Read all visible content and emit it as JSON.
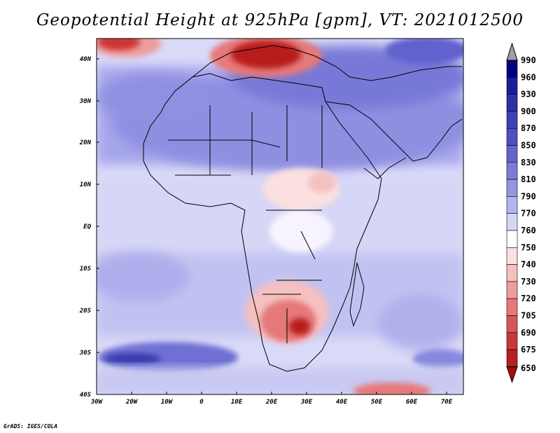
{
  "title": "Geopotential Height at 925hPa [gpm], VT: 2021012500",
  "footer": "GrADS: IGES/COLA",
  "lat_labels": [
    "40N",
    "30N",
    "20N",
    "10N",
    "EQ",
    "10S",
    "20S",
    "30S",
    "40S"
  ],
  "lon_labels": [
    "30W",
    "20W",
    "10W",
    "0",
    "10E",
    "20E",
    "30E",
    "40E",
    "50E",
    "60E",
    "70E"
  ],
  "colorbar": {
    "levels": [
      {
        "label": "990",
        "color": "#000080"
      },
      {
        "label": "960",
        "color": "#1c1c9a"
      },
      {
        "label": "930",
        "color": "#2f2fa8"
      },
      {
        "label": "900",
        "color": "#3f3fb6"
      },
      {
        "label": "870",
        "color": "#4f4fc2"
      },
      {
        "label": "850",
        "color": "#6464cf"
      },
      {
        "label": "830",
        "color": "#7b7bda"
      },
      {
        "label": "810",
        "color": "#9595e4"
      },
      {
        "label": "790",
        "color": "#b4b4ee"
      },
      {
        "label": "770",
        "color": "#d5d5f7"
      },
      {
        "label": "760",
        "color": "#ffffff"
      },
      {
        "label": "750",
        "color": "#fbe0e0"
      },
      {
        "label": "740",
        "color": "#f5c0c0"
      },
      {
        "label": "730",
        "color": "#ee9c9c"
      },
      {
        "label": "720",
        "color": "#e57979"
      },
      {
        "label": "705",
        "color": "#da5656"
      },
      {
        "label": "690",
        "color": "#cc3636"
      },
      {
        "label": "675",
        "color": "#b81f1f"
      },
      {
        "label": "650",
        "color": "#a30f0f"
      }
    ],
    "top_triangle_color": "#a0a0a0"
  },
  "colors": {
    "ocean_base": "#dadaf8",
    "land_base": "#a0a0ea"
  }
}
